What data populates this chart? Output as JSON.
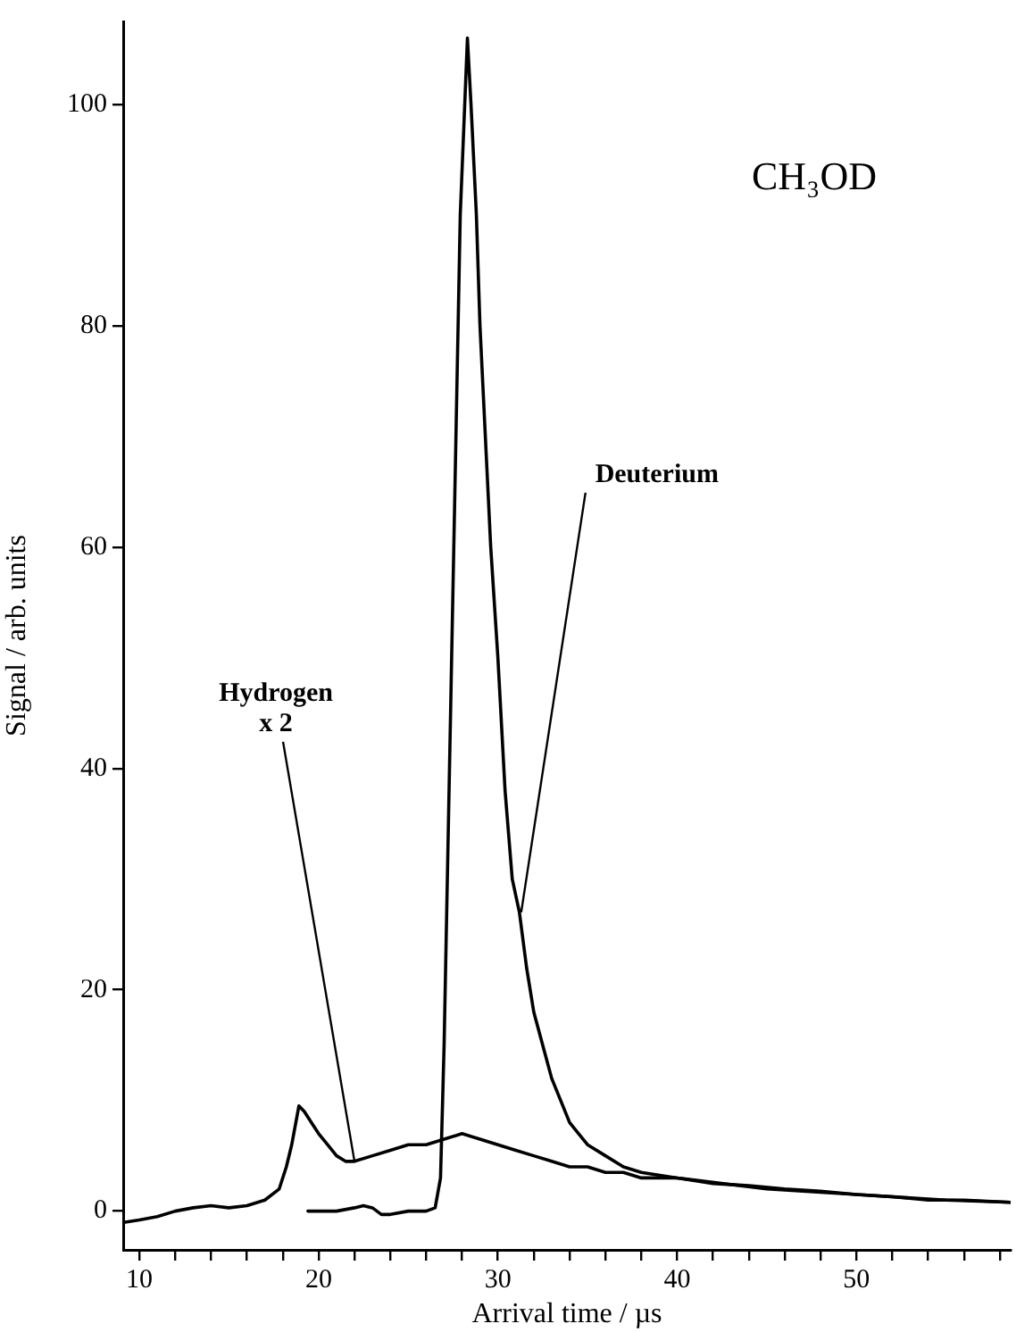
{
  "chart_data": {
    "type": "line",
    "xlabel": "Arrival time / µs",
    "ylabel": "Signal / arb. units",
    "xlim": [
      9.1,
      58.6
    ],
    "ylim": [
      -3.5,
      107.5
    ],
    "xticks": [
      10,
      {
        "value": 12,
        "label": null
      },
      {
        "value": 14,
        "label": null
      },
      {
        "value": 16,
        "label": null
      },
      {
        "value": 18,
        "label": null
      },
      20,
      {
        "value": 22,
        "label": null
      },
      {
        "value": 24,
        "label": null
      },
      {
        "value": 26,
        "label": null
      },
      {
        "value": 28,
        "label": null
      },
      30,
      {
        "value": 32,
        "label": null
      },
      {
        "value": 34,
        "label": null
      },
      {
        "value": 36,
        "label": null
      },
      {
        "value": 38,
        "label": null
      },
      40,
      {
        "value": 42,
        "label": null
      },
      {
        "value": 44,
        "label": null
      },
      {
        "value": 46,
        "label": null
      },
      {
        "value": 48,
        "label": null
      },
      50,
      {
        "value": 52,
        "label": null
      },
      {
        "value": 54,
        "label": null
      },
      {
        "value": 56,
        "label": null
      },
      {
        "value": 58,
        "label": null
      }
    ],
    "yticks": [
      0,
      20,
      40,
      60,
      80,
      100
    ],
    "grid": false,
    "legend": false,
    "marker": "none",
    "line_style": "solid",
    "series": [
      {
        "color": "#000000",
        "x": [
          9.2,
          10,
          11,
          12,
          13,
          14,
          15,
          16,
          17,
          17.8,
          18.2,
          18.5,
          18.9,
          19.2,
          19.6,
          20,
          20.5,
          21,
          21.5,
          22,
          23,
          24,
          25,
          26,
          27,
          28,
          29,
          30,
          31,
          32,
          33,
          34,
          35,
          36,
          37,
          38,
          40,
          42,
          44,
          46,
          48,
          50,
          52,
          54,
          56,
          58.6
        ],
        "values": [
          -1,
          -0.8,
          -0.5,
          0,
          0.3,
          0.5,
          0.3,
          0.5,
          1,
          2,
          4,
          6,
          9.5,
          9,
          8,
          7,
          6,
          5,
          4.5,
          4.5,
          5,
          5.5,
          6,
          6,
          6.5,
          7,
          6.5,
          6,
          5.5,
          5,
          4.5,
          4,
          4,
          3.5,
          3.5,
          3,
          3,
          2.5,
          2.3,
          2,
          1.8,
          1.5,
          1.3,
          1,
          1,
          0.8
        ]
      },
      {
        "color": "#000000",
        "x": [
          19.4,
          21,
          22,
          22.5,
          23,
          23.5,
          24,
          25,
          26,
          26.5,
          26.8,
          27,
          27.3,
          27.6,
          27.9,
          28.2,
          28.3,
          28.5,
          28.8,
          29,
          29.3,
          29.6,
          30,
          30.4,
          30.8,
          31.2,
          31.6,
          32,
          32.5,
          33,
          33.5,
          34,
          35,
          36,
          37,
          38,
          40,
          45,
          50,
          55,
          58.6
        ],
        "values": [
          0,
          0,
          0.3,
          0.5,
          0.3,
          -0.3,
          -0.3,
          0,
          0,
          0.3,
          3,
          15,
          40,
          65,
          90,
          102,
          106,
          100,
          90,
          80,
          70,
          60,
          50,
          38,
          30,
          27,
          22,
          18,
          15,
          12,
          10,
          8,
          6,
          5,
          4,
          3.5,
          3,
          2,
          1.5,
          1,
          0.8
        ]
      }
    ],
    "annotations": [
      "CH₃OD",
      {
        "text": "Hydrogen\nx 2",
        "x": 22,
        "y": 4.5
      },
      {
        "text": "Deuterium",
        "x": 31.3,
        "y": 27
      }
    ]
  }
}
